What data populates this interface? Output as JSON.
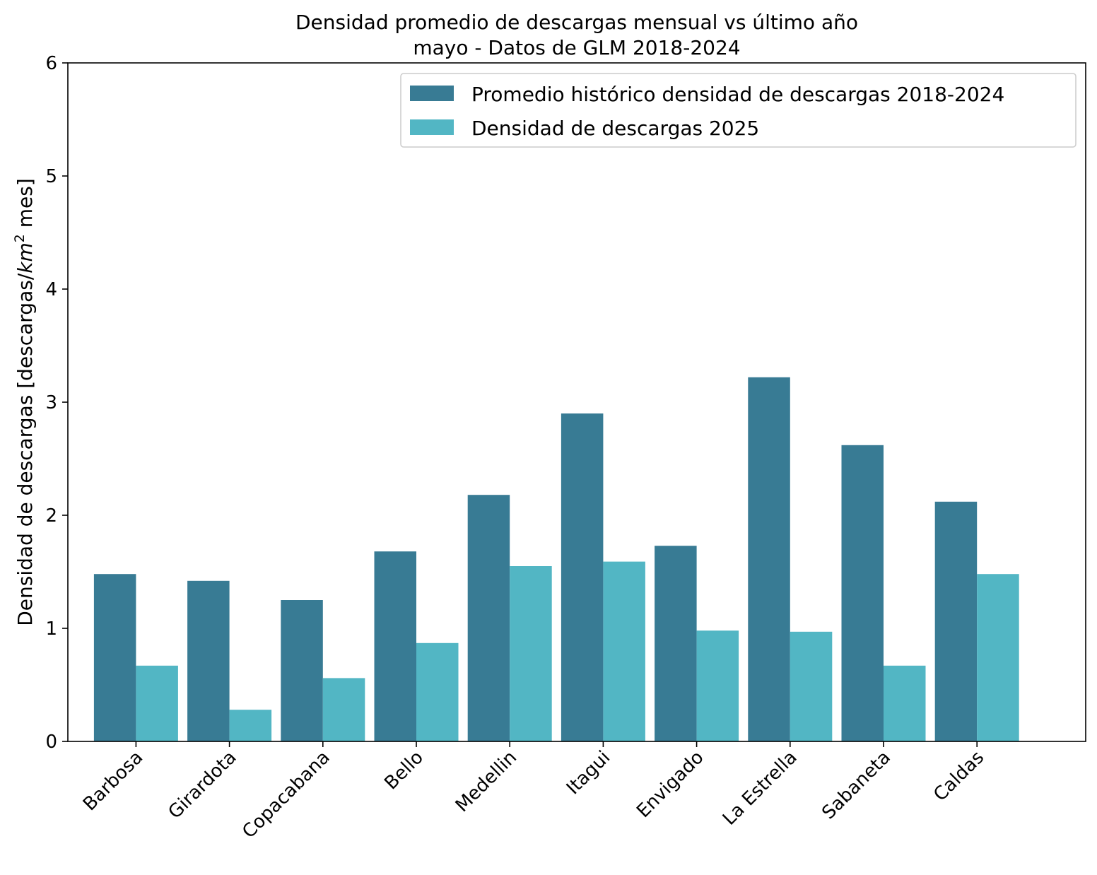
{
  "chart_data": {
    "type": "bar",
    "title": "Densidad promedio de descargas mensual vs último año",
    "subtitle": "mayo - Datos de GLM 2018-2024",
    "ylabel_prefix": "Densidad de descargas [descargas/",
    "ylabel_unit": "km",
    "ylabel_exp": "2",
    "ylabel_suffix": " mes]",
    "xlabel": "",
    "ylim": [
      0,
      6
    ],
    "yticks": [
      0,
      1,
      2,
      3,
      4,
      5,
      6
    ],
    "grid": false,
    "legend_position": "top-right",
    "categories": [
      "Barbosa",
      "Girardota",
      "Copacabana",
      "Bello",
      "Medellin",
      "Itagui",
      "Envigado",
      "La Estrella",
      "Sabaneta",
      "Caldas"
    ],
    "series": [
      {
        "name": "Promedio histórico densidad de descargas 2018-2024",
        "color": "#387b94",
        "values": [
          1.48,
          1.42,
          1.25,
          1.68,
          2.18,
          2.9,
          1.73,
          3.22,
          2.62,
          2.12
        ]
      },
      {
        "name": "Densidad de descargas 2025",
        "color": "#52b6c4",
        "values": [
          0.67,
          0.28,
          0.56,
          0.87,
          1.55,
          1.59,
          0.98,
          0.97,
          0.67,
          1.48
        ]
      }
    ]
  }
}
